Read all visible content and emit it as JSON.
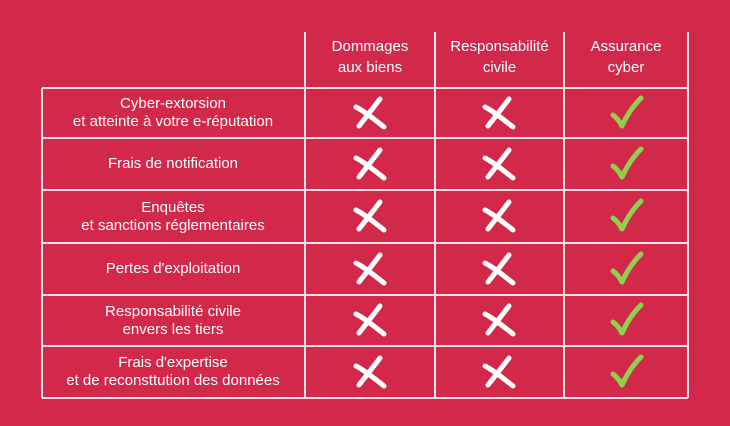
{
  "colors": {
    "background": "#d2294b",
    "grid": "#f2e3e6",
    "cross": "#ffffff",
    "check": "#8fd14f"
  },
  "columns": [
    {
      "label": "Dommages\naux biens"
    },
    {
      "label": "Responsabilité\ncivile"
    },
    {
      "label": "Assurance\ncyber"
    }
  ],
  "rows": [
    {
      "label": "Cyber-extorsion\net atteinte à votre e-réputation",
      "marks": [
        "cross-icon",
        "cross-icon",
        "check-icon"
      ]
    },
    {
      "label": "Frais de notification",
      "marks": [
        "cross-icon",
        "cross-icon",
        "check-icon"
      ]
    },
    {
      "label": "Enquêtes\net sanctions réglementaires",
      "marks": [
        "cross-icon",
        "cross-icon",
        "check-icon"
      ]
    },
    {
      "label": "Pertes d'exploitation",
      "marks": [
        "cross-icon",
        "cross-icon",
        "check-icon"
      ]
    },
    {
      "label": "Responsabilité civile\nenvers les tiers",
      "marks": [
        "cross-icon",
        "cross-icon",
        "check-icon"
      ]
    },
    {
      "label": "Frais d'expertise\net de reconsttution des données",
      "marks": [
        "cross-icon",
        "cross-icon",
        "check-icon"
      ]
    }
  ]
}
